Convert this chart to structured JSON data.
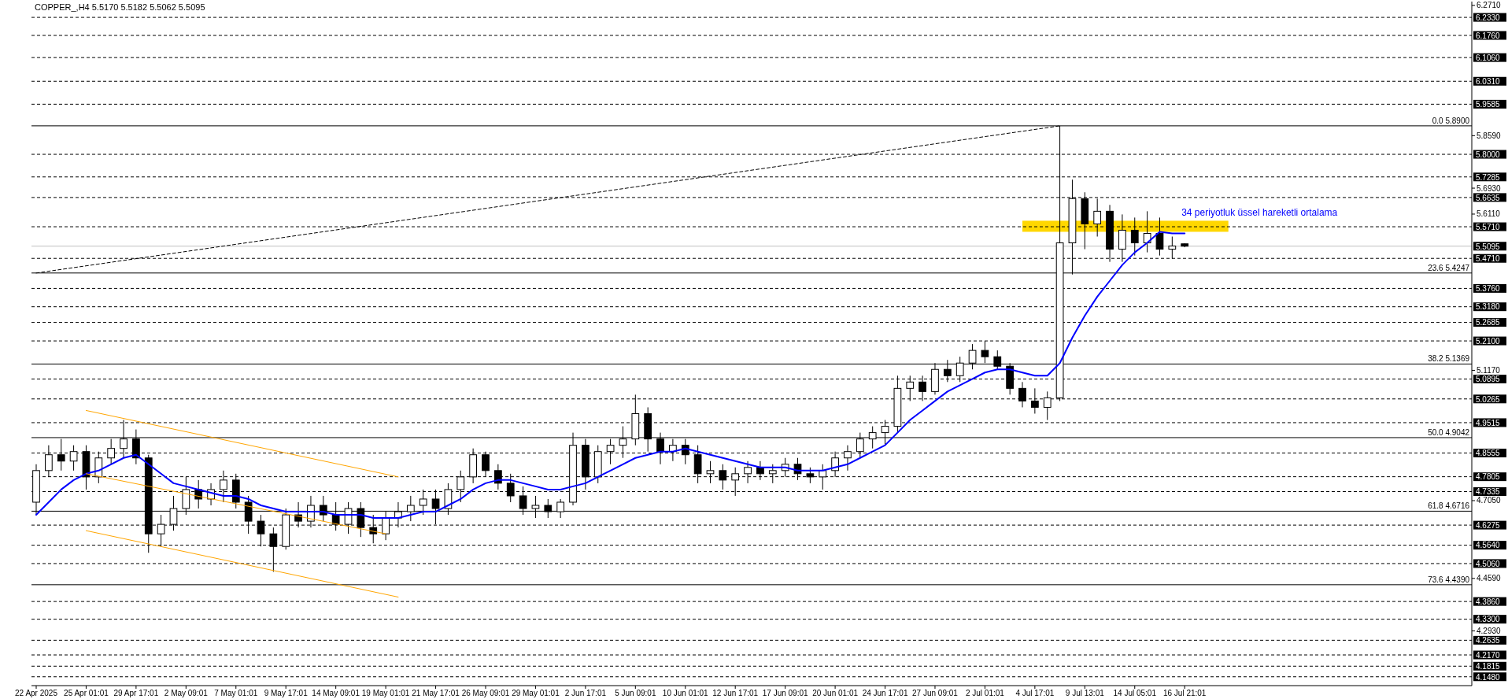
{
  "chart_data": {
    "type": "candlestick",
    "title": "COPPER_,H4  5.5170 5.5182 5.5062 5.5095",
    "categories": [
      "22 Apr 2025",
      null,
      null,
      null,
      "25 Apr 01:01",
      null,
      null,
      null,
      "29 Apr 17:01",
      null,
      null,
      null,
      "2 May 09:01",
      null,
      null,
      null,
      "7 May 01:01",
      null,
      null,
      null,
      "9 May 17:01",
      null,
      null,
      null,
      "14 May 09:01",
      null,
      null,
      null,
      "19 May 01:01",
      null,
      null,
      null,
      "21 May 17:01",
      null,
      null,
      null,
      "26 May 09:01",
      null,
      null,
      null,
      "29 May 01:01",
      null,
      null,
      null,
      "2 Jun 17:01",
      null,
      null,
      null,
      "5 Jun 09:01",
      null,
      null,
      null,
      "10 Jun 01:01",
      null,
      null,
      null,
      "12 Jun 17:01",
      null,
      null,
      null,
      "17 Jun 09:01",
      null,
      null,
      null,
      "20 Jun 01:01",
      null,
      null,
      null,
      "24 Jun 17:01",
      null,
      null,
      null,
      "27 Jun 09:01",
      null,
      null,
      null,
      "2 Jul 01:01",
      null,
      null,
      null,
      "4 Jul 17:01",
      null,
      null,
      null,
      "9 Jul 13:01",
      null,
      null,
      null,
      "14 Jul 05:01",
      null,
      null,
      null,
      "16 Jul 21:01"
    ],
    "ohlc": [
      [
        4.7,
        4.82,
        4.66,
        4.8
      ],
      [
        4.8,
        4.88,
        4.78,
        4.85
      ],
      [
        4.85,
        4.9,
        4.8,
        4.83
      ],
      [
        4.83,
        4.88,
        4.8,
        4.86
      ],
      [
        4.86,
        4.88,
        4.74,
        4.78
      ],
      [
        4.78,
        4.86,
        4.76,
        4.84
      ],
      [
        4.84,
        4.9,
        4.82,
        4.87
      ],
      [
        4.87,
        4.96,
        4.84,
        4.9
      ],
      [
        4.9,
        4.93,
        4.82,
        4.84
      ],
      [
        4.84,
        4.85,
        4.54,
        4.6
      ],
      [
        4.6,
        4.66,
        4.56,
        4.63
      ],
      [
        4.63,
        4.72,
        4.61,
        4.68
      ],
      [
        4.68,
        4.78,
        4.66,
        4.74
      ],
      [
        4.74,
        4.77,
        4.68,
        4.71
      ],
      [
        4.71,
        4.76,
        4.69,
        4.74
      ],
      [
        4.74,
        4.8,
        4.7,
        4.77
      ],
      [
        4.77,
        4.79,
        4.68,
        4.7
      ],
      [
        4.7,
        4.72,
        4.6,
        4.64
      ],
      [
        4.64,
        4.66,
        4.56,
        4.6
      ],
      [
        4.6,
        4.62,
        4.48,
        4.56
      ],
      [
        4.56,
        4.68,
        4.55,
        4.66
      ],
      [
        4.66,
        4.7,
        4.62,
        4.64
      ],
      [
        4.64,
        4.72,
        4.62,
        4.69
      ],
      [
        4.69,
        4.72,
        4.64,
        4.66
      ],
      [
        4.66,
        4.7,
        4.61,
        4.63
      ],
      [
        4.63,
        4.7,
        4.6,
        4.68
      ],
      [
        4.68,
        4.7,
        4.59,
        4.62
      ],
      [
        4.62,
        4.66,
        4.57,
        4.6
      ],
      [
        4.6,
        4.67,
        4.58,
        4.65
      ],
      [
        4.65,
        4.7,
        4.62,
        4.67
      ],
      [
        4.67,
        4.72,
        4.64,
        4.69
      ],
      [
        4.69,
        4.74,
        4.66,
        4.71
      ],
      [
        4.71,
        4.74,
        4.63,
        4.68
      ],
      [
        4.68,
        4.76,
        4.66,
        4.74
      ],
      [
        4.74,
        4.8,
        4.7,
        4.78
      ],
      [
        4.78,
        4.87,
        4.76,
        4.85
      ],
      [
        4.85,
        4.86,
        4.78,
        4.8
      ],
      [
        4.8,
        4.82,
        4.74,
        4.76
      ],
      [
        4.76,
        4.79,
        4.7,
        4.72
      ],
      [
        4.72,
        4.75,
        4.66,
        4.68
      ],
      [
        4.68,
        4.72,
        4.65,
        4.69
      ],
      [
        4.69,
        4.71,
        4.65,
        4.67
      ],
      [
        4.67,
        4.71,
        4.65,
        4.7
      ],
      [
        4.7,
        4.92,
        4.69,
        4.88
      ],
      [
        4.88,
        4.9,
        4.74,
        4.78
      ],
      [
        4.78,
        4.88,
        4.76,
        4.86
      ],
      [
        4.86,
        4.9,
        4.82,
        4.88
      ],
      [
        4.88,
        4.94,
        4.84,
        4.9
      ],
      [
        4.9,
        5.04,
        4.88,
        4.98
      ],
      [
        4.98,
        5.0,
        4.86,
        4.9
      ],
      [
        4.9,
        4.92,
        4.82,
        4.86
      ],
      [
        4.86,
        4.9,
        4.83,
        4.88
      ],
      [
        4.88,
        4.9,
        4.82,
        4.85
      ],
      [
        4.85,
        4.88,
        4.76,
        4.79
      ],
      [
        4.79,
        4.83,
        4.76,
        4.8
      ],
      [
        4.8,
        4.82,
        4.74,
        4.77
      ],
      [
        4.77,
        4.81,
        4.72,
        4.79
      ],
      [
        4.79,
        4.83,
        4.76,
        4.81
      ],
      [
        4.81,
        4.83,
        4.77,
        4.79
      ],
      [
        4.79,
        4.82,
        4.76,
        4.8
      ],
      [
        4.8,
        4.84,
        4.78,
        4.82
      ],
      [
        4.82,
        4.84,
        4.77,
        4.79
      ],
      [
        4.79,
        4.81,
        4.76,
        4.78
      ],
      [
        4.78,
        4.82,
        4.74,
        4.8
      ],
      [
        4.8,
        4.86,
        4.78,
        4.84
      ],
      [
        4.84,
        4.88,
        4.8,
        4.86
      ],
      [
        4.86,
        4.92,
        4.84,
        4.9
      ],
      [
        4.9,
        4.94,
        4.87,
        4.92
      ],
      [
        4.92,
        4.96,
        4.88,
        4.94
      ],
      [
        4.94,
        5.1,
        4.92,
        5.06
      ],
      [
        5.06,
        5.1,
        5.02,
        5.08
      ],
      [
        5.08,
        5.1,
        5.02,
        5.05
      ],
      [
        5.05,
        5.14,
        5.04,
        5.12
      ],
      [
        5.12,
        5.15,
        5.08,
        5.1
      ],
      [
        5.1,
        5.16,
        5.08,
        5.14
      ],
      [
        5.14,
        5.2,
        5.12,
        5.18
      ],
      [
        5.18,
        5.21,
        5.14,
        5.16
      ],
      [
        5.16,
        5.18,
        5.12,
        5.13
      ],
      [
        5.13,
        5.14,
        5.04,
        5.06
      ],
      [
        5.06,
        5.08,
        5.0,
        5.02
      ],
      [
        5.02,
        5.06,
        4.98,
        5.0
      ],
      [
        5.0,
        5.05,
        4.96,
        5.03
      ],
      [
        5.03,
        5.89,
        5.02,
        5.52
      ],
      [
        5.52,
        5.72,
        5.42,
        5.66
      ],
      [
        5.66,
        5.68,
        5.5,
        5.58
      ],
      [
        5.58,
        5.66,
        5.54,
        5.62
      ],
      [
        5.62,
        5.64,
        5.46,
        5.5
      ],
      [
        5.5,
        5.61,
        5.46,
        5.56
      ],
      [
        5.56,
        5.6,
        5.48,
        5.52
      ],
      [
        5.52,
        5.62,
        5.49,
        5.55
      ],
      [
        5.55,
        5.6,
        5.48,
        5.5
      ],
      [
        5.5,
        5.54,
        5.47,
        5.51
      ],
      [
        5.517,
        5.5182,
        5.5062,
        5.5095
      ]
    ],
    "series": [
      {
        "type": "line",
        "name": "34 periyotluk üssel hareketli ortalama",
        "color": "#0000ff",
        "line_style": "solid",
        "values": [
          4.66,
          4.7,
          4.74,
          4.77,
          4.79,
          4.8,
          4.82,
          4.84,
          4.85,
          4.82,
          4.79,
          4.76,
          4.75,
          4.74,
          4.73,
          4.72,
          4.72,
          4.71,
          4.69,
          4.68,
          4.67,
          4.67,
          4.67,
          4.67,
          4.66,
          4.66,
          4.66,
          4.65,
          4.65,
          4.65,
          4.66,
          4.67,
          4.67,
          4.69,
          4.71,
          4.74,
          4.76,
          4.77,
          4.77,
          4.76,
          4.75,
          4.74,
          4.74,
          4.75,
          4.76,
          4.78,
          4.8,
          4.82,
          4.84,
          4.85,
          4.86,
          4.86,
          4.87,
          4.86,
          4.85,
          4.84,
          4.83,
          4.82,
          4.81,
          4.81,
          4.81,
          4.8,
          4.8,
          4.8,
          4.81,
          4.82,
          4.84,
          4.86,
          4.88,
          4.92,
          4.96,
          4.99,
          5.02,
          5.05,
          5.07,
          5.09,
          5.11,
          5.12,
          5.12,
          5.11,
          5.1,
          5.1,
          5.14,
          5.22,
          5.29,
          5.35,
          5.4,
          5.45,
          5.49,
          5.52,
          5.555,
          5.55,
          5.55
        ]
      },
      {
        "type": "line",
        "color": "#ffa500",
        "line_style": "solid",
        "values": [
          null,
          null,
          null,
          null,
          4.99,
          null,
          null,
          null,
          null,
          null,
          null,
          null,
          null,
          null,
          null,
          null,
          null,
          null,
          null,
          null,
          null,
          null,
          null,
          null,
          null,
          null,
          null,
          null,
          null,
          4.78,
          null,
          null,
          null,
          null,
          null,
          null,
          null,
          null,
          null,
          null,
          null,
          null,
          null,
          null,
          null,
          null,
          null,
          null,
          null,
          null,
          null,
          null,
          null,
          null,
          null,
          null,
          null,
          null,
          null,
          null,
          null,
          null,
          null,
          null,
          null,
          null,
          null,
          null,
          null,
          null,
          null,
          null,
          null,
          null,
          null,
          null,
          null,
          null,
          null,
          null,
          null,
          null,
          null,
          null,
          null,
          null,
          null,
          null,
          null,
          null,
          null,
          null,
          null
        ]
      },
      {
        "type": "line",
        "color": "#ffa500",
        "line_style": "solid",
        "values": [
          null,
          null,
          null,
          null,
          4.79,
          null,
          null,
          null,
          null,
          null,
          null,
          null,
          null,
          null,
          null,
          null,
          null,
          null,
          null,
          null,
          null,
          null,
          null,
          null,
          null,
          null,
          null,
          null,
          4.6,
          null,
          null,
          null,
          null,
          null,
          null,
          null,
          null,
          null,
          null,
          null,
          null,
          null,
          null,
          null,
          null,
          null,
          null,
          null,
          null,
          null,
          null,
          null,
          null,
          null,
          null,
          null,
          null,
          null,
          null,
          null,
          null,
          null,
          null,
          null,
          null,
          null,
          null,
          null,
          null,
          null,
          null,
          null,
          null,
          null,
          null,
          null,
          null,
          null,
          null,
          null,
          null,
          null,
          null,
          null,
          null,
          null,
          null,
          null,
          null,
          null,
          null,
          null,
          null
        ]
      },
      {
        "type": "line",
        "color": "#ffa500",
        "line_style": "solid",
        "values": [
          null,
          null,
          null,
          null,
          4.61,
          null,
          null,
          null,
          null,
          null,
          null,
          null,
          null,
          null,
          null,
          null,
          null,
          null,
          null,
          null,
          null,
          null,
          null,
          null,
          null,
          null,
          null,
          null,
          null,
          4.4,
          null,
          null,
          null,
          null,
          null,
          null,
          null,
          null,
          null,
          null,
          null,
          null,
          null,
          null,
          null,
          null,
          null,
          null,
          null,
          null,
          null,
          null,
          null,
          null,
          null,
          null,
          null,
          null,
          null,
          null,
          null,
          null,
          null,
          null,
          null,
          null,
          null,
          null,
          null,
          null,
          null,
          null,
          null,
          null,
          null,
          null,
          null,
          null,
          null,
          null,
          null,
          null,
          null,
          null,
          null,
          null,
          null,
          null,
          null,
          null,
          null,
          null,
          null
        ]
      },
      {
        "type": "line",
        "color": "#000000",
        "line_style": "dashed",
        "values": [
          5.4247,
          null,
          null,
          null,
          null,
          null,
          null,
          null,
          null,
          null,
          null,
          null,
          null,
          null,
          null,
          null,
          null,
          null,
          null,
          null,
          null,
          null,
          null,
          null,
          null,
          null,
          null,
          null,
          null,
          null,
          null,
          null,
          null,
          null,
          null,
          null,
          null,
          null,
          null,
          null,
          null,
          null,
          null,
          null,
          null,
          null,
          null,
          null,
          null,
          null,
          null,
          null,
          null,
          null,
          null,
          null,
          null,
          null,
          null,
          null,
          null,
          null,
          null,
          null,
          null,
          null,
          null,
          null,
          null,
          null,
          null,
          null,
          null,
          null,
          null,
          null,
          null,
          null,
          null,
          null,
          null,
          null,
          5.89,
          null,
          null,
          null,
          null,
          null,
          null,
          null,
          null,
          null,
          null
        ]
      }
    ],
    "ylim": [
      4.12,
      6.283
    ],
    "yticks": [
      {
        "value": 6.271,
        "label": "6.2710"
      },
      {
        "value": 5.859,
        "label": "5.8590"
      },
      {
        "value": 5.693,
        "label": "5.6930"
      },
      {
        "value": 5.611,
        "label": "5.6110"
      },
      {
        "value": 5.117,
        "label": "5.1170"
      },
      {
        "value": 4.705,
        "label": "4.7050"
      },
      {
        "value": 4.459,
        "label": "4.4590"
      },
      {
        "value": 4.293,
        "label": "4.2930"
      }
    ],
    "bands": [
      {
        "axis": "y",
        "from": 5.555,
        "to": 5.59,
        "color": "#ffd700"
      }
    ],
    "ref_lines": [
      {
        "axis": "y",
        "value": 6.233,
        "label": "6.2330",
        "line_style": "dashed",
        "color": "#000000"
      },
      {
        "axis": "y",
        "value": 6.176,
        "label": "6.1760",
        "line_style": "dashed",
        "color": "#000000"
      },
      {
        "axis": "y",
        "value": 6.106,
        "label": "6.1060",
        "line_style": "dashed",
        "color": "#000000"
      },
      {
        "axis": "y",
        "value": 6.031,
        "label": "6.0310",
        "line_style": "dashed",
        "color": "#000000"
      },
      {
        "axis": "y",
        "value": 5.9585,
        "label": "5.9585",
        "line_style": "dashed",
        "color": "#000000"
      },
      {
        "axis": "y",
        "value": 5.89,
        "label": "0.0 5.8900",
        "line_style": "solid",
        "color": "#000000"
      },
      {
        "axis": "y",
        "value": 5.8,
        "label": "5.8000",
        "line_style": "dashed",
        "color": "#000000"
      },
      {
        "axis": "y",
        "value": 5.7285,
        "label": "5.7285",
        "line_style": "dashed",
        "color": "#000000"
      },
      {
        "axis": "y",
        "value": 5.6635,
        "label": "5.6635",
        "line_style": "dashed",
        "color": "#000000"
      },
      {
        "axis": "y",
        "value": 5.571,
        "label": "5.5710",
        "line_style": "dashed",
        "color": "#000000"
      },
      {
        "axis": "y",
        "value": 5.5095,
        "label": "5.5095",
        "line_style": "solid",
        "color": "#c0c0c0"
      },
      {
        "axis": "y",
        "value": 5.471,
        "label": "5.4710",
        "line_style": "dashed",
        "color": "#000000"
      },
      {
        "axis": "y",
        "value": 5.4247,
        "label": "23.6 5.4247",
        "line_style": "solid",
        "color": "#000000"
      },
      {
        "axis": "y",
        "value": 5.376,
        "label": "5.3760",
        "line_style": "dashed",
        "color": "#000000"
      },
      {
        "axis": "y",
        "value": 5.318,
        "label": "5.3180",
        "line_style": "dashed",
        "color": "#000000"
      },
      {
        "axis": "y",
        "value": 5.2685,
        "label": "5.2685",
        "line_style": "dashed",
        "color": "#000000"
      },
      {
        "axis": "y",
        "value": 5.21,
        "label": "5.2100",
        "line_style": "dashed",
        "color": "#000000"
      },
      {
        "axis": "y",
        "value": 5.1369,
        "label": "38.2 5.1369",
        "line_style": "solid",
        "color": "#000000"
      },
      {
        "axis": "y",
        "value": 5.0895,
        "label": "5.0895",
        "line_style": "dashed",
        "color": "#000000"
      },
      {
        "axis": "y",
        "value": 5.0265,
        "label": "5.0265",
        "line_style": "dashed",
        "color": "#000000"
      },
      {
        "axis": "y",
        "value": 4.9515,
        "label": "4.9515",
        "line_style": "dashed",
        "color": "#000000"
      },
      {
        "axis": "y",
        "value": 4.9042,
        "label": "50.0 4.9042",
        "line_style": "solid",
        "color": "#000000"
      },
      {
        "axis": "y",
        "value": 4.8555,
        "label": "4.8555",
        "line_style": "dashed",
        "color": "#000000"
      },
      {
        "axis": "y",
        "value": 4.7805,
        "label": "4.7805",
        "line_style": "dashed",
        "color": "#000000"
      },
      {
        "axis": "y",
        "value": 4.7335,
        "label": "4.7335",
        "line_style": "dashed",
        "color": "#000000"
      },
      {
        "axis": "y",
        "value": 4.6716,
        "label": "61.8 4.6716",
        "line_style": "solid",
        "color": "#000000"
      },
      {
        "axis": "y",
        "value": 4.6275,
        "label": "4.6275",
        "line_style": "dashed",
        "color": "#000000"
      },
      {
        "axis": "y",
        "value": 4.564,
        "label": "4.5640",
        "line_style": "dashed",
        "color": "#000000"
      },
      {
        "axis": "y",
        "value": 4.506,
        "label": "4.5060",
        "line_style": "dashed",
        "color": "#000000"
      },
      {
        "axis": "y",
        "value": 4.439,
        "label": "73.6 4.4390",
        "line_style": "solid",
        "color": "#000000"
      },
      {
        "axis": "y",
        "value": 4.386,
        "label": "4.3860",
        "line_style": "dashed",
        "color": "#000000"
      },
      {
        "axis": "y",
        "value": 4.33,
        "label": "4.3300",
        "line_style": "dashed",
        "color": "#000000"
      },
      {
        "axis": "y",
        "value": 4.2635,
        "label": "4.2635",
        "line_style": "dashed",
        "color": "#000000"
      },
      {
        "axis": "y",
        "value": 4.217,
        "label": "4.2170",
        "line_style": "dashed",
        "color": "#000000"
      },
      {
        "axis": "y",
        "value": 4.1815,
        "label": "4.1815",
        "line_style": "dashed",
        "color": "#000000"
      },
      {
        "axis": "y",
        "value": 4.148,
        "label": "4.1480",
        "line_style": "dashed",
        "color": "#000000"
      }
    ]
  }
}
